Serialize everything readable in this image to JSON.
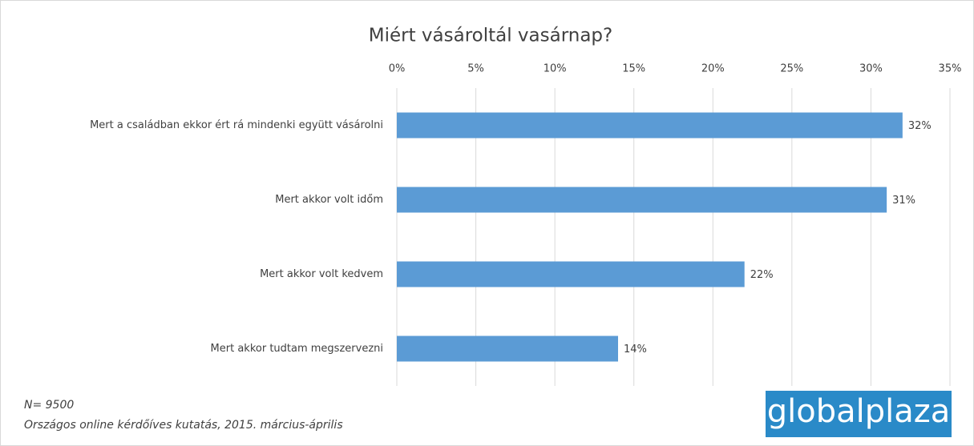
{
  "chart_data": {
    "type": "bar",
    "orientation": "horizontal",
    "title": "Miért vásároltál vasárnap?",
    "categories": [
      "Mert a családban ekkor ért rá mindenki együtt vásárolni",
      "Mert akkor volt időm",
      "Mert akkor volt kedvem",
      "Mert akkor tudtam megszervezni"
    ],
    "values": [
      32,
      31,
      22,
      14
    ],
    "value_labels": [
      "32%",
      "31%",
      "22%",
      "14%"
    ],
    "color": "#5b9bd5",
    "xlim": [
      0,
      35
    ],
    "xticks": [
      {
        "value": 0,
        "label": "0%"
      },
      {
        "value": 5,
        "label": "5%"
      },
      {
        "value": 10,
        "label": "10%"
      },
      {
        "value": 15,
        "label": "15%"
      },
      {
        "value": 20,
        "label": "20%"
      },
      {
        "value": 25,
        "label": "25%"
      },
      {
        "value": 30,
        "label": "30%"
      },
      {
        "value": 35,
        "label": "35%"
      }
    ],
    "grid": true,
    "annotations": [
      "N= 9500",
      "Országos online kérdőíves kutatás, 2015. március-április"
    ],
    "logo": "globalplaza"
  }
}
